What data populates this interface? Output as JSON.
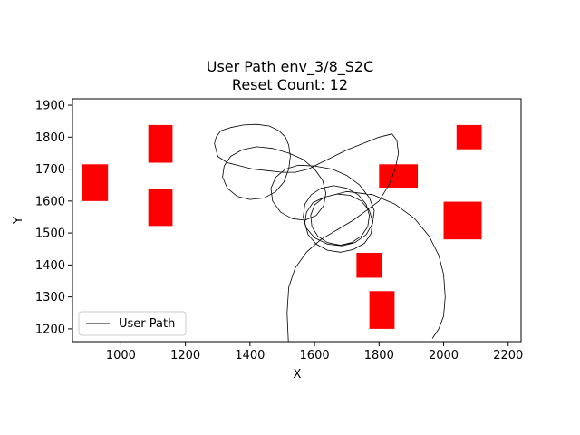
{
  "chart_data": {
    "type": "line",
    "title": "User Path env_3/8_S2C",
    "subtitle": "Reset Count: 12",
    "xlabel": "X",
    "ylabel": "Y",
    "xlim": [
      850,
      2240
    ],
    "ylim": [
      1160,
      1920
    ],
    "xticks": [
      1000,
      1200,
      1400,
      1600,
      1800,
      2000,
      2200
    ],
    "yticks": [
      1200,
      1300,
      1400,
      1500,
      1600,
      1700,
      1800,
      1900
    ],
    "grid": false,
    "legend": {
      "location": "lower-left",
      "entries": [
        "User Path"
      ]
    },
    "colors": {
      "path": "#000000",
      "obstacle": "#ff0000"
    },
    "obstacles": [
      {
        "x0": 880,
        "x1": 960,
        "y0": 1600,
        "y1": 1715
      },
      {
        "x0": 1085,
        "x1": 1160,
        "y0": 1720,
        "y1": 1838
      },
      {
        "x0": 1085,
        "x1": 1160,
        "y0": 1522,
        "y1": 1637
      },
      {
        "x0": 1800,
        "x1": 1920,
        "y0": 1642,
        "y1": 1715
      },
      {
        "x0": 2040,
        "x1": 2118,
        "y0": 1762,
        "y1": 1838
      },
      {
        "x0": 2000,
        "x1": 2118,
        "y0": 1480,
        "y1": 1598
      },
      {
        "x0": 1730,
        "x1": 1808,
        "y0": 1360,
        "y1": 1438
      },
      {
        "x0": 1770,
        "x1": 1848,
        "y0": 1200,
        "y1": 1318
      }
    ],
    "series": [
      {
        "name": "User Path",
        "points": [
          [
            1519,
            1160
          ],
          [
            1515,
            1250
          ],
          [
            1520,
            1330
          ],
          [
            1540,
            1390
          ],
          [
            1575,
            1440
          ],
          [
            1620,
            1480
          ],
          [
            1670,
            1510
          ],
          [
            1720,
            1540
          ],
          [
            1760,
            1570
          ],
          [
            1800,
            1600
          ],
          [
            1830,
            1650
          ],
          [
            1850,
            1700
          ],
          [
            1860,
            1750
          ],
          [
            1855,
            1790
          ],
          [
            1840,
            1810
          ],
          [
            1800,
            1800
          ],
          [
            1750,
            1780
          ],
          [
            1700,
            1760
          ],
          [
            1660,
            1740
          ],
          [
            1620,
            1720
          ],
          [
            1580,
            1700
          ],
          [
            1540,
            1690
          ],
          [
            1500,
            1690
          ],
          [
            1455,
            1695
          ],
          [
            1410,
            1700
          ],
          [
            1370,
            1710
          ],
          [
            1330,
            1720
          ],
          [
            1300,
            1740
          ],
          [
            1290,
            1780
          ],
          [
            1295,
            1800
          ],
          [
            1310,
            1820
          ],
          [
            1340,
            1830
          ],
          [
            1380,
            1838
          ],
          [
            1420,
            1840
          ],
          [
            1460,
            1835
          ],
          [
            1490,
            1820
          ],
          [
            1510,
            1800
          ],
          [
            1520,
            1775
          ],
          [
            1525,
            1740
          ],
          [
            1520,
            1700
          ],
          [
            1505,
            1660
          ],
          [
            1480,
            1630
          ],
          [
            1445,
            1610
          ],
          [
            1400,
            1605
          ],
          [
            1360,
            1615
          ],
          [
            1330,
            1640
          ],
          [
            1315,
            1675
          ],
          [
            1320,
            1710
          ],
          [
            1340,
            1740
          ],
          [
            1375,
            1760
          ],
          [
            1420,
            1770
          ],
          [
            1470,
            1765
          ],
          [
            1520,
            1750
          ],
          [
            1565,
            1730
          ],
          [
            1600,
            1700
          ],
          [
            1625,
            1665
          ],
          [
            1635,
            1625
          ],
          [
            1628,
            1585
          ],
          [
            1605,
            1555
          ],
          [
            1570,
            1540
          ],
          [
            1530,
            1545
          ],
          [
            1495,
            1565
          ],
          [
            1470,
            1600
          ],
          [
            1465,
            1640
          ],
          [
            1480,
            1675
          ],
          [
            1510,
            1700
          ],
          [
            1550,
            1712
          ],
          [
            1600,
            1710
          ],
          [
            1655,
            1700
          ],
          [
            1700,
            1680
          ],
          [
            1740,
            1650
          ],
          [
            1770,
            1610
          ],
          [
            1785,
            1570
          ],
          [
            1780,
            1530
          ],
          [
            1760,
            1495
          ],
          [
            1725,
            1470
          ],
          [
            1685,
            1460
          ],
          [
            1640,
            1465
          ],
          [
            1600,
            1485
          ],
          [
            1575,
            1515
          ],
          [
            1565,
            1550
          ],
          [
            1570,
            1590
          ],
          [
            1590,
            1620
          ],
          [
            1620,
            1640
          ],
          [
            1660,
            1648
          ],
          [
            1700,
            1640
          ],
          [
            1735,
            1620
          ],
          [
            1760,
            1590
          ],
          [
            1770,
            1555
          ],
          [
            1765,
            1520
          ],
          [
            1745,
            1490
          ],
          [
            1715,
            1470
          ],
          [
            1680,
            1462
          ],
          [
            1640,
            1470
          ],
          [
            1610,
            1490
          ],
          [
            1592,
            1520
          ],
          [
            1588,
            1555
          ],
          [
            1600,
            1588
          ],
          [
            1630,
            1612
          ],
          [
            1670,
            1622
          ],
          [
            1710,
            1618
          ],
          [
            1745,
            1600
          ],
          [
            1770,
            1570
          ],
          [
            1780,
            1535
          ],
          [
            1775,
            1498
          ],
          [
            1755,
            1468
          ],
          [
            1720,
            1448
          ],
          [
            1680,
            1440
          ],
          [
            1640,
            1446
          ],
          [
            1605,
            1465
          ],
          [
            1580,
            1495
          ],
          [
            1570,
            1530
          ],
          [
            1575,
            1565
          ],
          [
            1595,
            1595
          ],
          [
            1630,
            1612
          ],
          [
            1700,
            1630
          ],
          [
            1780,
            1620
          ],
          [
            1850,
            1590
          ],
          [
            1910,
            1545
          ],
          [
            1955,
            1490
          ],
          [
            1985,
            1430
          ],
          [
            2000,
            1370
          ],
          [
            2005,
            1300
          ],
          [
            2000,
            1240
          ],
          [
            1985,
            1200
          ],
          [
            1965,
            1170
          ]
        ]
      }
    ]
  }
}
